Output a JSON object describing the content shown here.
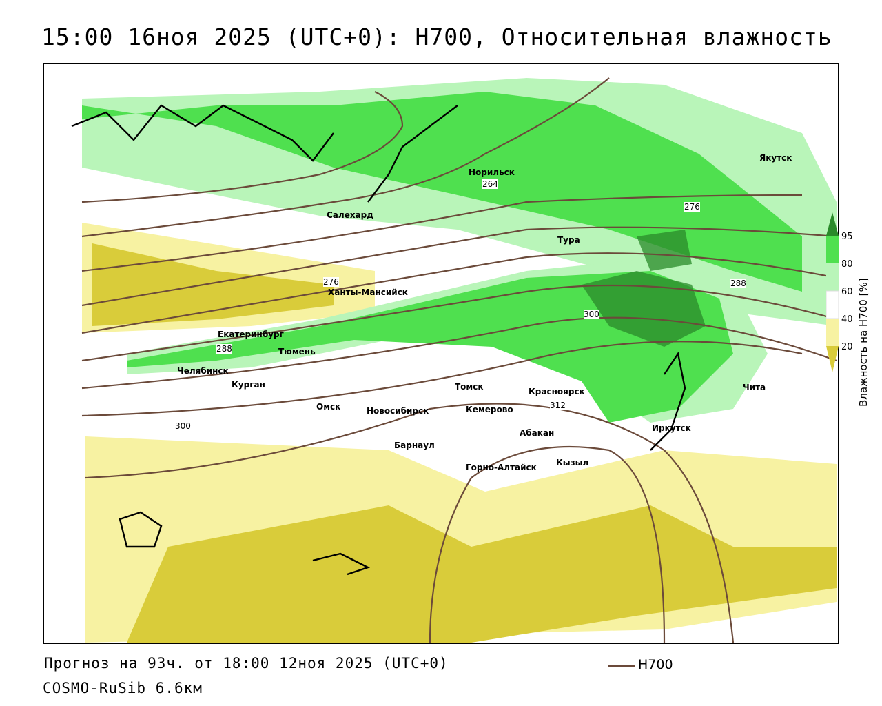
{
  "title": "15:00 16ноя 2025 (UTC+0): H700, Относительная влажность",
  "forecast": "Прогноз на 93ч. от 18:00 12ноя 2025 (UTC+0)",
  "model": "COSMO-RuSib 6.6км",
  "legend": {
    "contour_label": "H700",
    "contour_color": "#6b4a3a"
  },
  "colorbar": {
    "title": "Влажность на H700 [%]",
    "ticks": [
      "95",
      "80",
      "60",
      "40",
      "20"
    ],
    "colors": {
      "very_high": "#2a8a2a",
      "high": "#4fe04f",
      "mid_high": "#b9f5b9",
      "mid": "#ffffff",
      "low": "#f7f2a2",
      "very_low": "#d9cc3a"
    }
  },
  "contour_labels": [
    "264",
    "276",
    "276",
    "288",
    "288",
    "300",
    "300",
    "312"
  ],
  "cities": [
    "Норильск",
    "Якутск",
    "Салехард",
    "Тура",
    "Ханты-Мансийск",
    "Екатеринбург",
    "Тюмень",
    "Челябинск",
    "Курган",
    "Омск",
    "Новосибирск",
    "Томск",
    "Кемерово",
    "Красноярск",
    "Барнаул",
    "Абакан",
    "Иркутск",
    "Чита",
    "Горно-Алтайск",
    "Кызыл"
  ]
}
